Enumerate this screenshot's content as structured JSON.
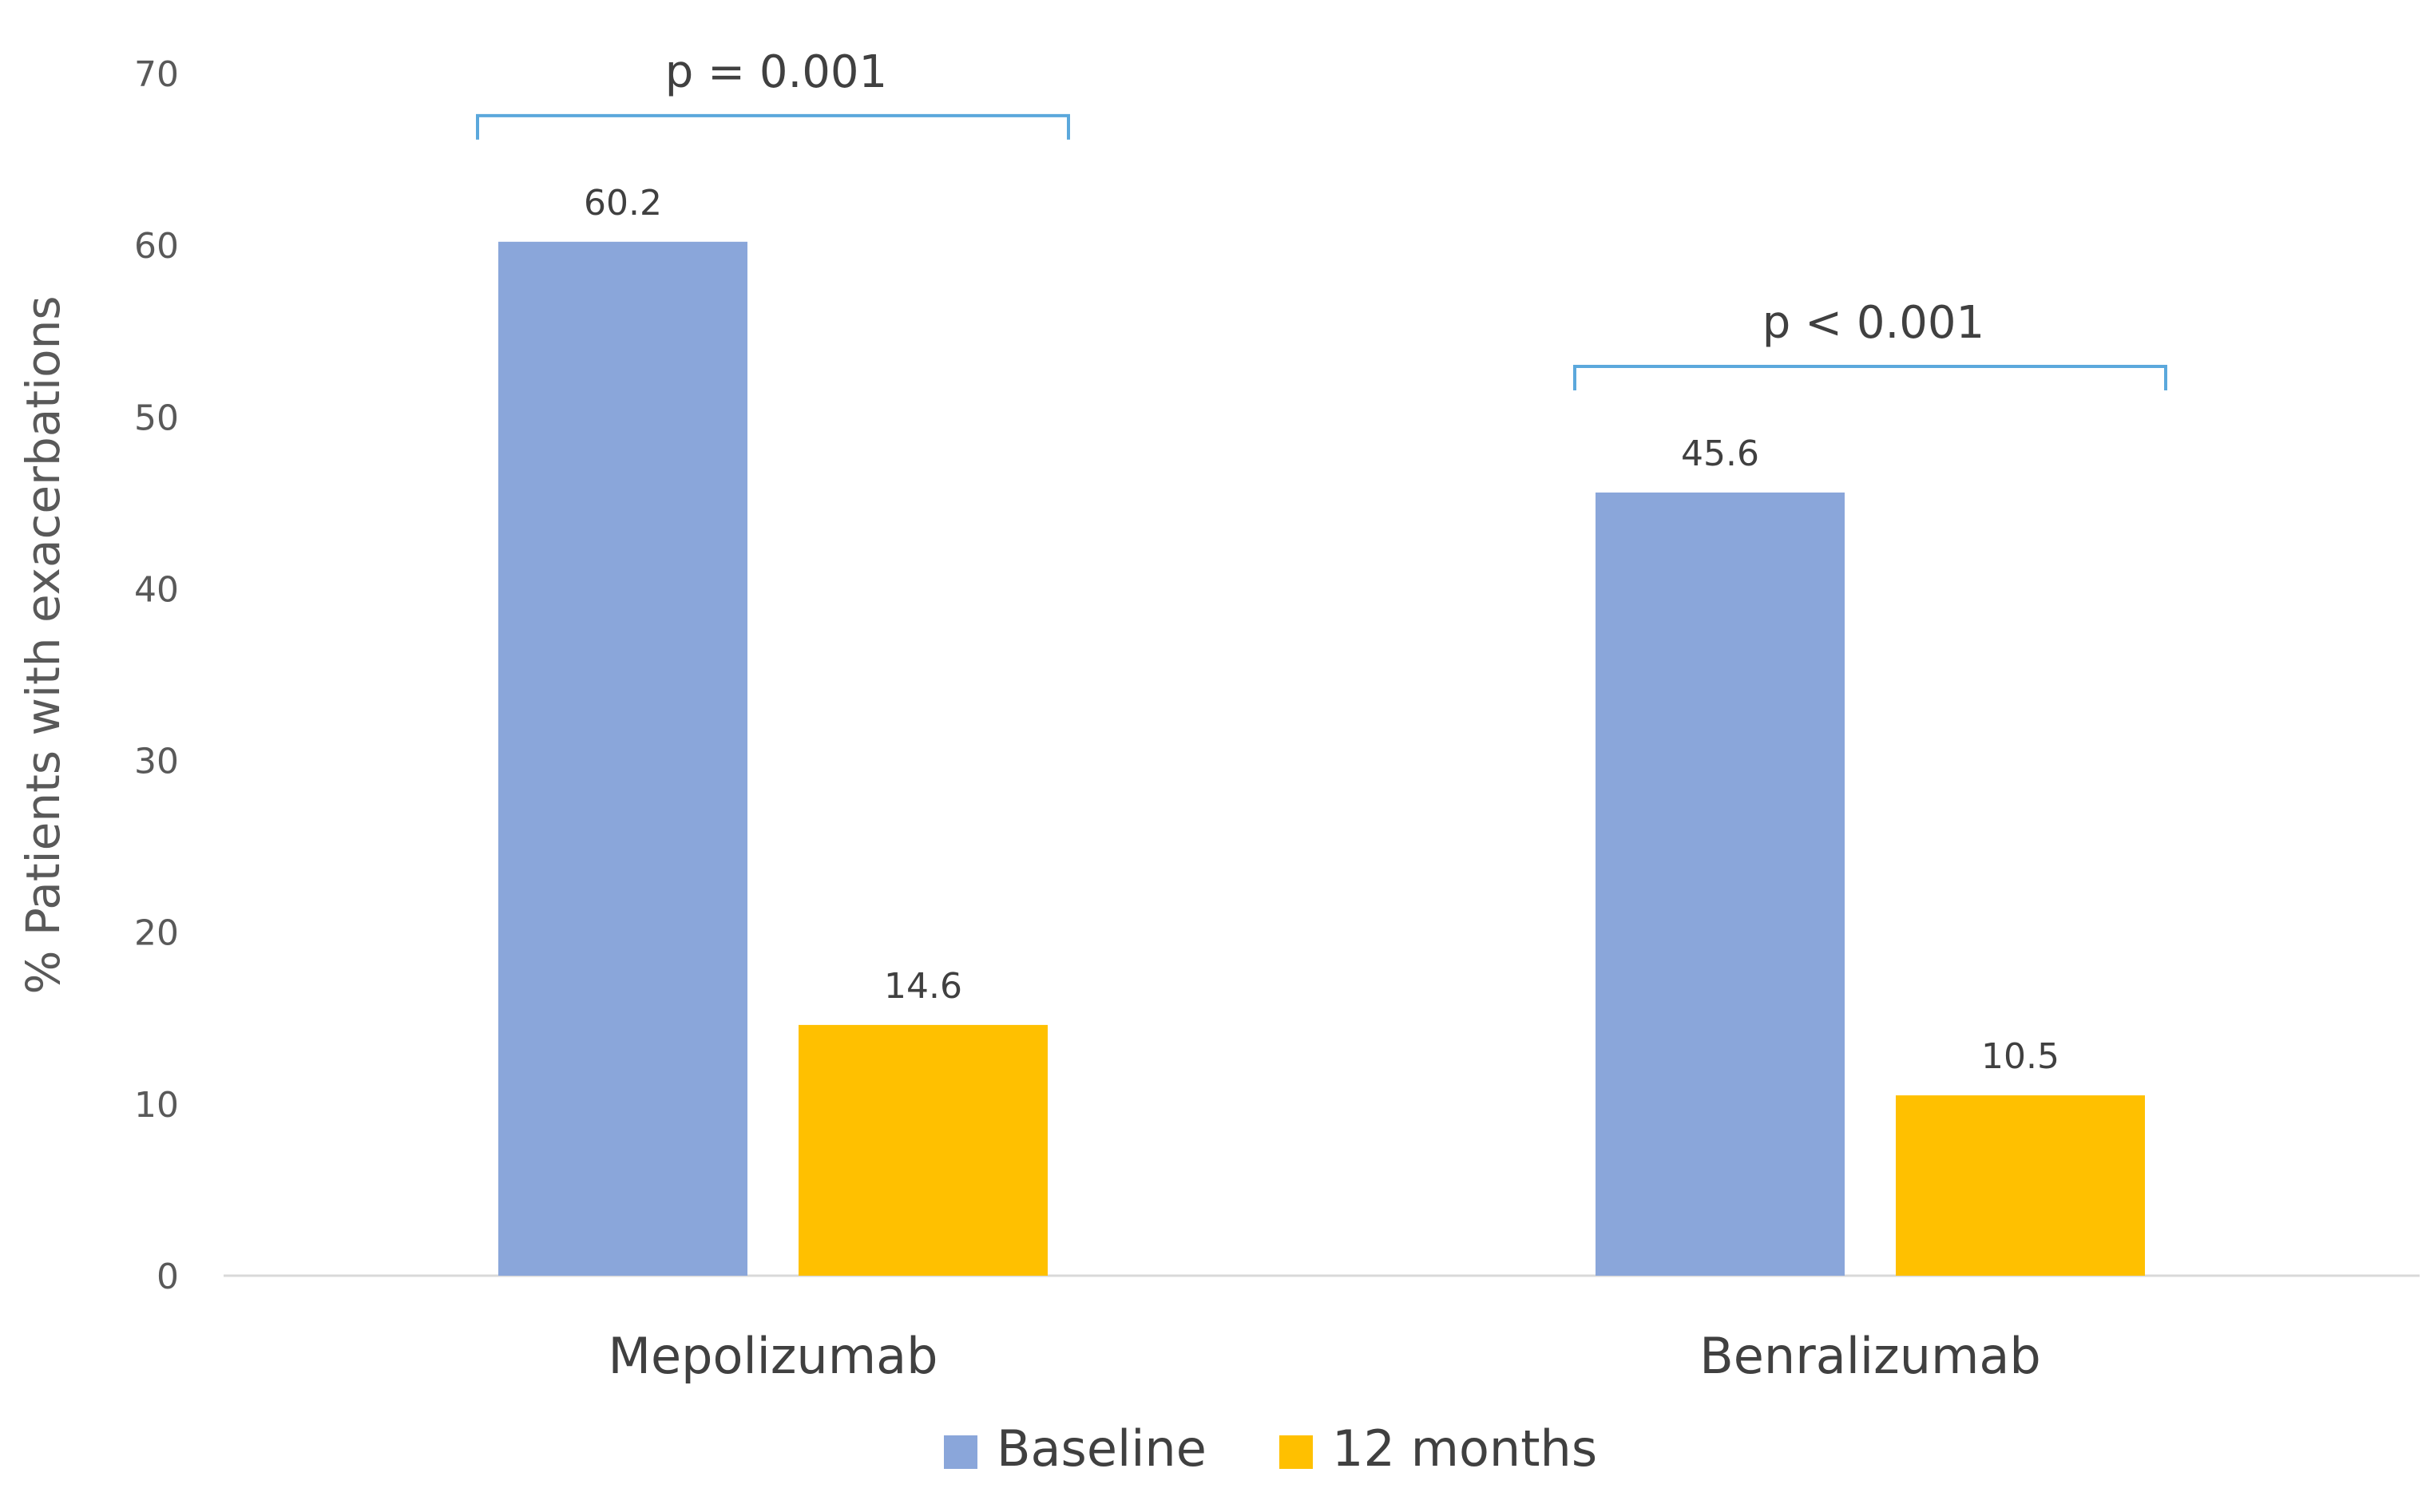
{
  "chart_data": {
    "type": "bar",
    "categories": [
      "Mepolizumab",
      "Benralizumab"
    ],
    "series": [
      {
        "name": "Baseline",
        "values": [
          60.2,
          45.6
        ],
        "color": "#8AA6DA"
      },
      {
        "name": "12 months",
        "values": [
          14.6,
          10.5
        ],
        "color": "#FFC000"
      }
    ],
    "ylabel": "% Patients with exacerbations",
    "xlabel": "",
    "ylim": [
      0,
      70
    ],
    "yticks": [
      0,
      10,
      20,
      30,
      40,
      50,
      60,
      70
    ],
    "grid": false,
    "legend": "bottom-center",
    "data_labels": {
      "series_0": [
        "60.2",
        "45.6"
      ],
      "series_1": [
        "14.6",
        "10.5"
      ]
    },
    "annotations": [
      {
        "text": "p = 0.001",
        "category": "Mepolizumab"
      },
      {
        "text": "p < 0.001",
        "category": "Benralizumab"
      }
    ],
    "bracket_color": "#5BA8DC",
    "axis_color": "#D9D9D9"
  }
}
